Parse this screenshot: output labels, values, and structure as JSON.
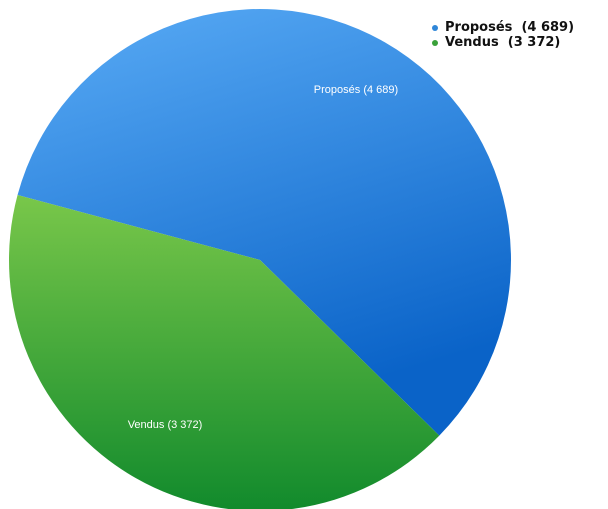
{
  "chart_data": {
    "type": "pie",
    "slices": [
      {
        "label": "Proposés",
        "value": 4689,
        "display": "Proposés  (4 689)",
        "legend": "Proposés  (4 689)",
        "color": "#3b8ee6"
      },
      {
        "label": "Vendus",
        "value": 3372,
        "display": "Vendus  (3 372)",
        "legend": "Vendus  (3 372)",
        "color": "#46a93a"
      }
    ],
    "legend_position": "top-right"
  }
}
